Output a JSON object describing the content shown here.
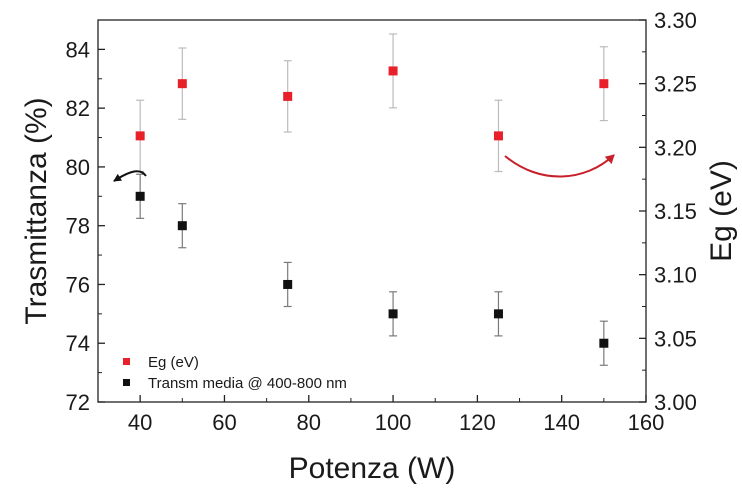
{
  "chart_data": {
    "type": "scatter",
    "xlabel": "Potenza (W)",
    "ylabel_left": "Trasmittanza (%)",
    "ylabel_right": "Eg (eV)",
    "xlim": [
      30,
      160
    ],
    "ylim_left": [
      72,
      85
    ],
    "ylim_right": [
      3.0,
      3.3
    ],
    "x_ticks": [
      "40",
      "60",
      "80",
      "100",
      "120",
      "140",
      "160"
    ],
    "y_left_ticks": [
      "72",
      "74",
      "76",
      "78",
      "80",
      "82",
      "84"
    ],
    "y_right_ticks": [
      "3.00",
      "3.05",
      "3.10",
      "3.15",
      "3.20",
      "3.25",
      "3.30"
    ],
    "legend_position": "bottom-left",
    "series": [
      {
        "name": "Eg (eV)",
        "axis": "right",
        "color": "#e8202a",
        "error_color": "#bbbbbb",
        "x": [
          40,
          50,
          75,
          100,
          125,
          150
        ],
        "y": [
          3.209,
          3.25,
          3.24,
          3.26,
          3.209,
          3.25
        ],
        "y_err": [
          0.028,
          0.028,
          0.028,
          0.029,
          0.028,
          0.029
        ]
      },
      {
        "name": "Transm media @ 400-800 nm",
        "axis": "left",
        "color": "#111111",
        "error_color": "#7a7a7a",
        "x": [
          40,
          50,
          75,
          100,
          125,
          150
        ],
        "y": [
          79,
          78,
          76,
          75,
          75,
          74
        ],
        "y_err": [
          0.75,
          0.75,
          0.75,
          0.75,
          0.75,
          0.75
        ]
      }
    ],
    "annotations": [
      {
        "type": "arrow",
        "points_to": "left axis",
        "near_series": "Transm media @ 400-800 nm",
        "color": "#111111"
      },
      {
        "type": "arrow",
        "points_to": "right axis",
        "near_series": "Eg (eV)",
        "color": "#c8202a"
      }
    ]
  }
}
